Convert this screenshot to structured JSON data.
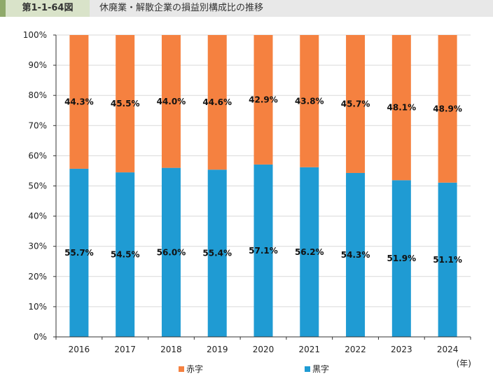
{
  "header": {
    "figure_number": "第1-1-64図",
    "title": "休廃業・解散企業の損益別構成比の推移"
  },
  "chart_data": {
    "type": "bar",
    "stacked": true,
    "categories": [
      "2016",
      "2017",
      "2018",
      "2019",
      "2020",
      "2021",
      "2022",
      "2023",
      "2024"
    ],
    "series": [
      {
        "name": "黒字",
        "color": "#1f9bd3",
        "values": [
          55.7,
          54.5,
          56.0,
          55.4,
          57.1,
          56.2,
          54.3,
          51.9,
          51.1
        ]
      },
      {
        "name": "赤字",
        "color": "#f58140",
        "values": [
          44.3,
          45.5,
          44.0,
          44.6,
          42.9,
          43.8,
          45.7,
          48.1,
          48.9
        ]
      }
    ],
    "ylim": [
      0,
      100
    ],
    "yticks": [
      "0%",
      "10%",
      "20%",
      "30%",
      "40%",
      "50%",
      "60%",
      "70%",
      "80%",
      "90%",
      "100%"
    ],
    "xlabel": "(年)",
    "grid": true,
    "legend": "bottom"
  }
}
